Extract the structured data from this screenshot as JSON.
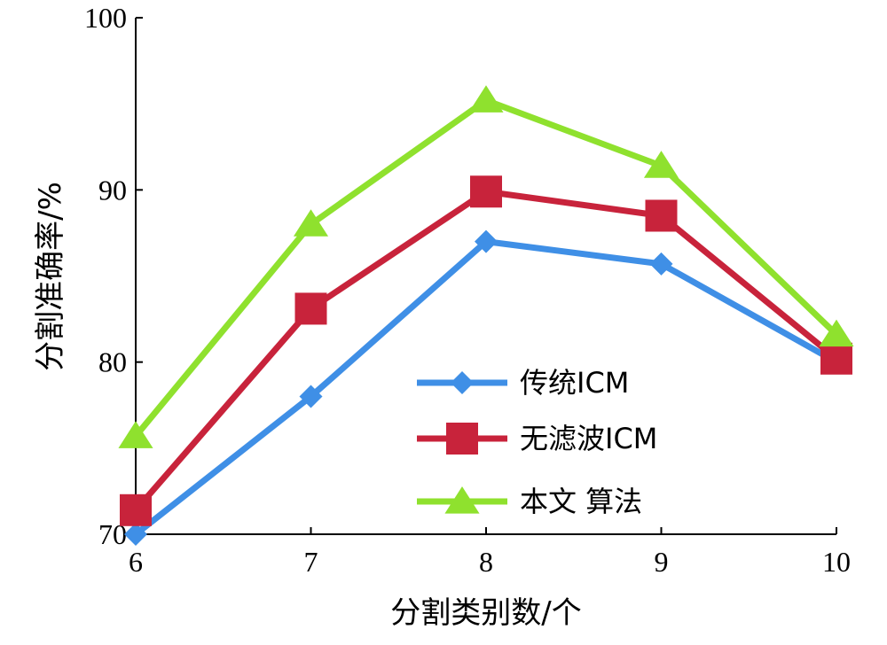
{
  "chart_data": {
    "type": "line",
    "x": [
      6,
      7,
      8,
      9,
      10
    ],
    "xlabel": "分割类别数/个",
    "ylabel": "分割准确率/%",
    "xlim": [
      6,
      10
    ],
    "ylim": [
      70,
      100
    ],
    "xticks": [
      "6",
      "7",
      "8",
      "9",
      "10"
    ],
    "yticks": [
      "70",
      "80",
      "90",
      "100"
    ],
    "grid": false,
    "legend_position": "lower-right",
    "series": [
      {
        "name": "传统ICM",
        "values": [
          70.0,
          78.0,
          87.0,
          85.7,
          80.0
        ],
        "color": "#3f8fe6",
        "marker": "diamond"
      },
      {
        "name": "无滤波ICM",
        "values": [
          71.4,
          83.1,
          89.9,
          88.5,
          80.2
        ],
        "color": "#c8233b",
        "marker": "square"
      },
      {
        "name": "本文 算法",
        "values": [
          75.7,
          88.0,
          95.2,
          91.4,
          81.6
        ],
        "color": "#8fe12e",
        "marker": "triangle"
      }
    ]
  }
}
